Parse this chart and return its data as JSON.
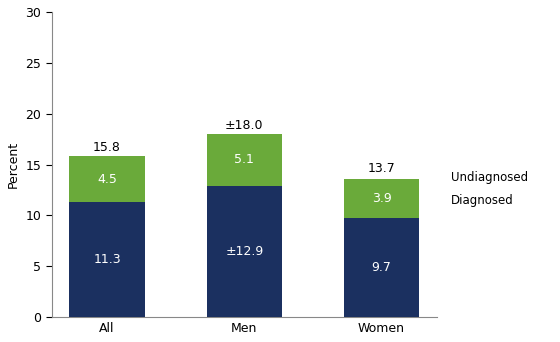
{
  "categories": [
    "All",
    "Men",
    "Women"
  ],
  "diagnosed": [
    11.3,
    12.9,
    9.7
  ],
  "undiagnosed": [
    4.5,
    5.1,
    3.9
  ],
  "totals": [
    15.8,
    18.0,
    13.7
  ],
  "diagnosed_labels": [
    "11.3",
    "±12.9",
    "9.7"
  ],
  "undiagnosed_labels": [
    "4.5",
    "5.1",
    "3.9"
  ],
  "total_labels": [
    "15.8",
    "±18.0",
    "13.7"
  ],
  "diagnosed_color": "#1b3060",
  "undiagnosed_color": "#6aaa3a",
  "ylabel": "Percent",
  "ylim": [
    0,
    30
  ],
  "yticks": [
    0,
    5,
    10,
    15,
    20,
    25,
    30
  ],
  "legend_labels": [
    "Undiagnosed",
    "Diagnosed"
  ],
  "bar_width": 0.55,
  "background_color": "#ffffff",
  "plot_bg_color": "#ffffff"
}
